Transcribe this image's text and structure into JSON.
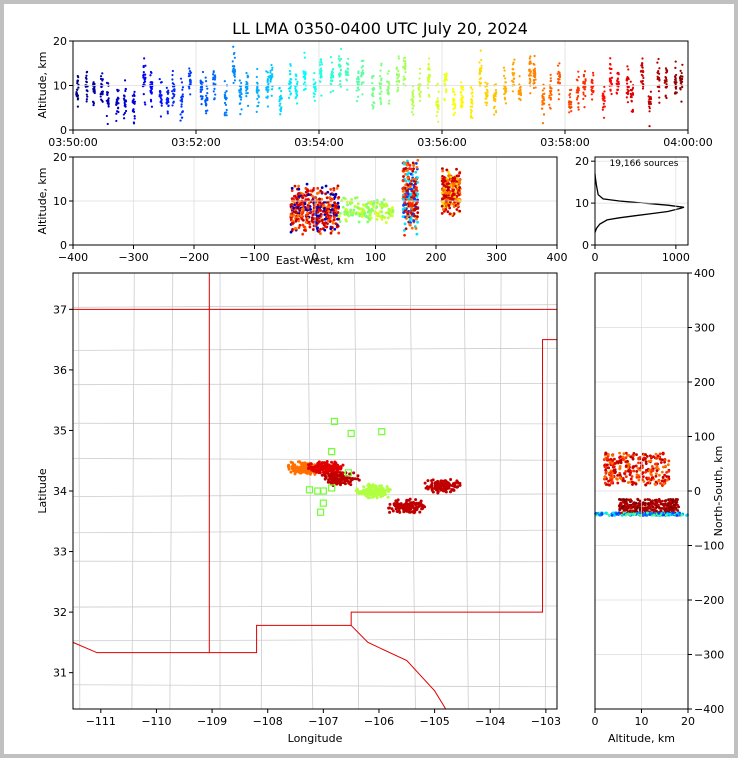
{
  "chart_data": [
    {
      "panel": "time-altitude",
      "type": "scatter",
      "title": "LL LMA 0350-0400 UTC July 20, 2024",
      "xlabel": "",
      "ylabel": "Altitude, km",
      "x_tick_labels": [
        "03:50:00",
        "03:52:00",
        "03:54:00",
        "03:56:00",
        "03:58:00",
        "04:00:00"
      ],
      "x_ticks_min": [
        0,
        2,
        4,
        6,
        8,
        10
      ],
      "xlim_min": [
        0,
        10
      ],
      "ylim": [
        0,
        20
      ],
      "y_ticks": [
        0,
        10,
        20
      ],
      "colormap": "jet (time)",
      "note": "Flash clusters of lightning sources every few seconds, mostly 5-15 km altitude"
    },
    {
      "panel": "eastwest-altitude",
      "type": "scatter",
      "xlabel": "East-West, km",
      "ylabel": "Altitude, km",
      "xlim": [
        -400,
        400
      ],
      "x_ticks": [
        -400,
        -300,
        -200,
        -100,
        0,
        100,
        200,
        300,
        400
      ],
      "ylim": [
        0,
        20
      ],
      "y_ticks": [
        0,
        10,
        20
      ],
      "clusters": [
        {
          "x_range": [
            -40,
            40
          ],
          "alt_range": [
            2,
            14
          ],
          "color": "mixed orange/red"
        },
        {
          "x_range": [
            40,
            130
          ],
          "alt_range": [
            5,
            11
          ],
          "color": "yellow-green"
        },
        {
          "x_range": [
            145,
            170
          ],
          "alt_range": [
            2,
            20
          ],
          "color": "red/orange"
        },
        {
          "x_range": [
            210,
            240
          ],
          "alt_range": [
            6,
            18
          ],
          "color": "red/orange"
        }
      ]
    },
    {
      "panel": "altitude-histogram",
      "type": "line",
      "annotation": "19,166 sources",
      "xlim": [
        0,
        1150
      ],
      "x_ticks": [
        0,
        1000
      ],
      "ylim": [
        0,
        21
      ],
      "y_ticks": [
        0,
        10,
        20
      ],
      "x": [
        0,
        20,
        60,
        150,
        300,
        500,
        700,
        900,
        1050,
        1100,
        900,
        600,
        300,
        100,
        40,
        20,
        5,
        0
      ],
      "y": [
        3,
        4,
        5,
        6,
        6.5,
        7,
        7.5,
        8,
        8.7,
        9,
        9.5,
        10,
        10.5,
        11,
        12,
        14,
        16,
        17
      ]
    },
    {
      "panel": "plan-view",
      "type": "scatter",
      "xlabel": "Longitude",
      "ylabel": "Latitude",
      "xlim": [
        -111.5,
        -102.8
      ],
      "x_ticks": [
        -111,
        -110,
        -109,
        -108,
        -107,
        -106,
        -105,
        -104,
        -103
      ],
      "ylim": [
        30.4,
        37.6
      ],
      "y_ticks": [
        31,
        32,
        33,
        34,
        35,
        36,
        37
      ],
      "stations": [
        {
          "lon": -106.8,
          "lat": 35.15
        },
        {
          "lon": -106.5,
          "lat": 34.95
        },
        {
          "lon": -105.95,
          "lat": 34.98
        },
        {
          "lon": -106.85,
          "lat": 34.65
        },
        {
          "lon": -107.25,
          "lat": 34.02
        },
        {
          "lon": -107.1,
          "lat": 34.0
        },
        {
          "lon": -107.0,
          "lat": 34.0
        },
        {
          "lon": -106.85,
          "lat": 34.05
        },
        {
          "lon": -107.0,
          "lat": 33.8
        },
        {
          "lon": -107.05,
          "lat": 33.65
        },
        {
          "lon": -106.55,
          "lat": 34.3
        }
      ],
      "clusters": [
        {
          "lon": -107.35,
          "lat": 34.38,
          "color": "#ff7000"
        },
        {
          "lon": -106.95,
          "lat": 34.38,
          "color": "#e00000"
        },
        {
          "lon": -106.7,
          "lat": 34.2,
          "color": "#c00000"
        },
        {
          "lon": -106.1,
          "lat": 34.0,
          "color": "#b0ff40"
        },
        {
          "lon": -105.5,
          "lat": 33.75,
          "color": "#c00000"
        },
        {
          "lon": -104.85,
          "lat": 34.08,
          "color": "#c00000"
        }
      ]
    },
    {
      "panel": "altitude-northsouth",
      "type": "scatter",
      "xlabel": "Altitude, km",
      "ylabel": "North-South, km",
      "xlim": [
        0,
        20
      ],
      "x_ticks": [
        0,
        10,
        20
      ],
      "ylim": [
        -400,
        400
      ],
      "y_ticks": [
        -400,
        -300,
        -200,
        -100,
        0,
        100,
        200,
        300,
        400
      ],
      "clusters": [
        {
          "alt_range": [
            2,
            16
          ],
          "ns_range": [
            10,
            70
          ],
          "color": "red"
        },
        {
          "alt_range": [
            5,
            18
          ],
          "ns_range": [
            -45,
            -15
          ],
          "color": "dark red"
        },
        {
          "alt_range": [
            0,
            20
          ],
          "ns_range": [
            -45,
            -40
          ],
          "color": "cyan/blue"
        }
      ]
    }
  ]
}
